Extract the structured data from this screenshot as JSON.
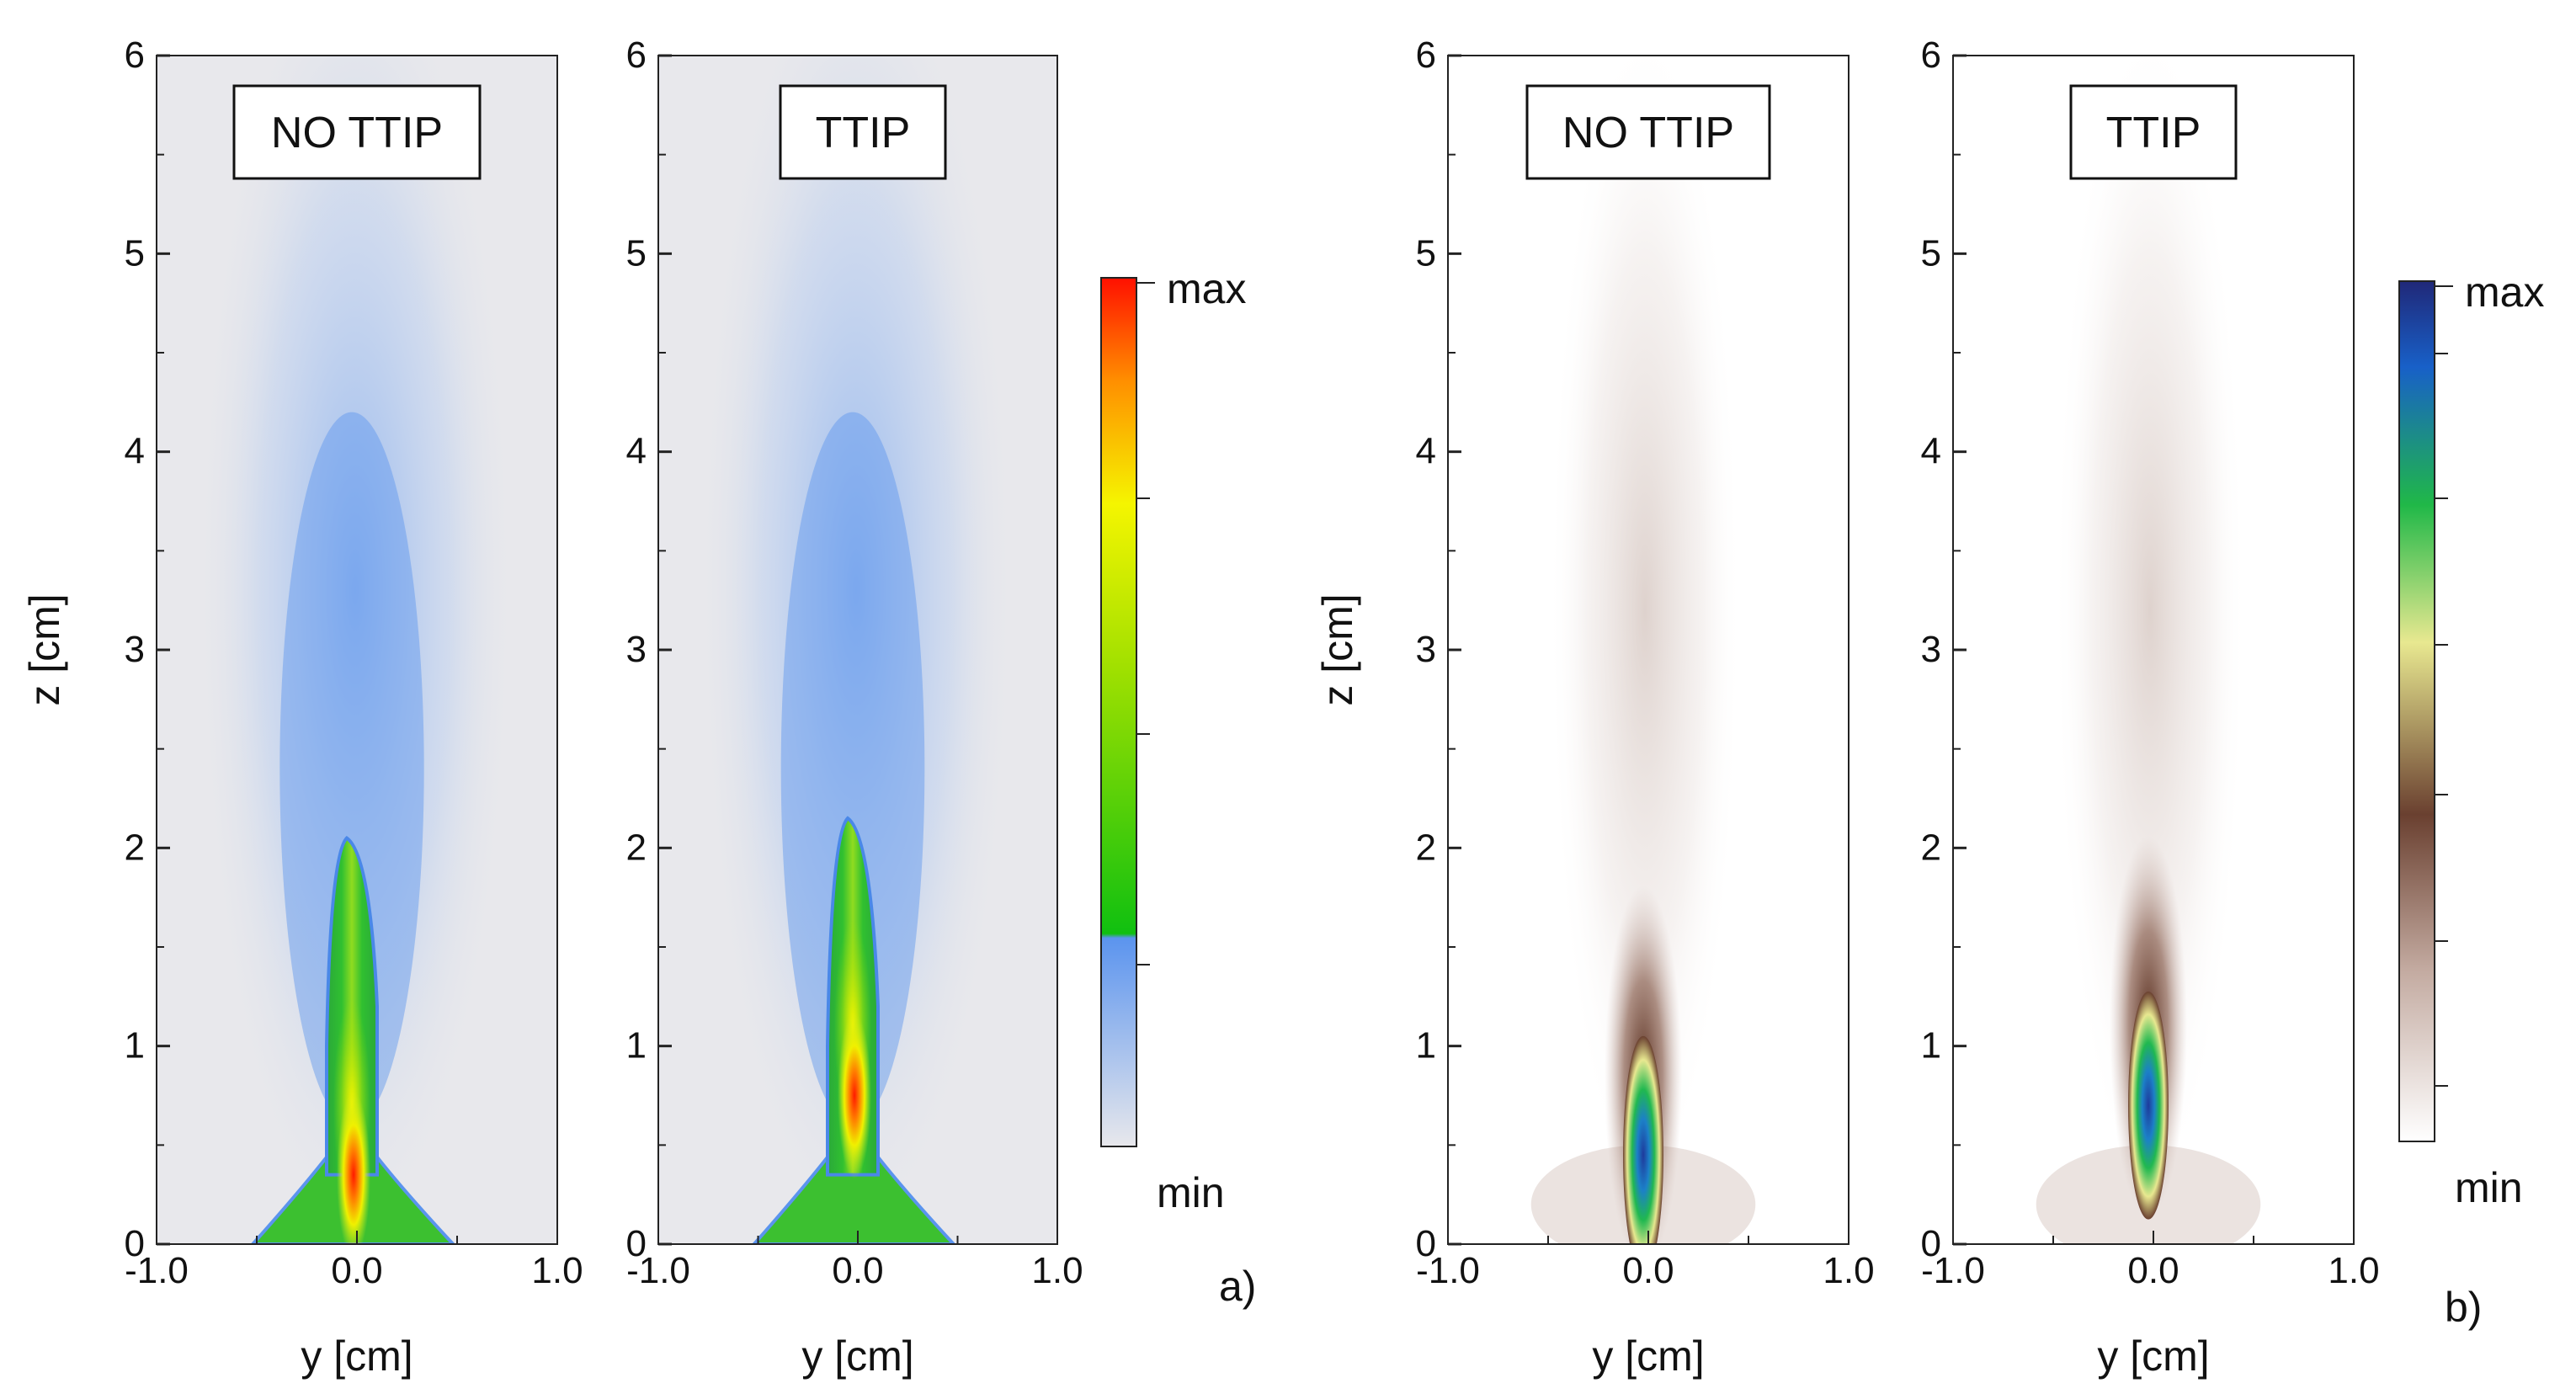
{
  "chart_data": [
    {
      "type": "heatmap",
      "label": "NO TTIP",
      "colormap": "rainbow",
      "panel_group": "a",
      "xlabel": "y [cm]",
      "ylabel": "z [cm]",
      "xlim": [
        -1.0,
        1.0
      ],
      "ylim": [
        0,
        6
      ],
      "xticks": [
        "-1.0",
        "0.0",
        "1.0"
      ],
      "yticks": [
        "0",
        "1",
        "2",
        "3",
        "4",
        "5",
        "6"
      ],
      "core_top_z": 2.05,
      "peak_z": 0.35
    },
    {
      "type": "heatmap",
      "label": "TTIP",
      "colormap": "rainbow",
      "panel_group": "a",
      "xlabel": "y [cm]",
      "ylabel": "",
      "xlim": [
        -1.0,
        1.0
      ],
      "ylim": [
        0,
        6
      ],
      "xticks": [
        "-1.0",
        "0.0",
        "1.0"
      ],
      "yticks": [
        "0",
        "1",
        "2",
        "3",
        "4",
        "5",
        "6"
      ],
      "core_top_z": 2.15,
      "peak_z": 0.75
    },
    {
      "type": "heatmap",
      "label": "NO TTIP",
      "colormap": "earth",
      "panel_group": "b",
      "xlabel": "y [cm]",
      "ylabel": "z [cm]",
      "xlim": [
        -1.0,
        1.0
      ],
      "ylim": [
        0,
        6
      ],
      "xticks": [
        "-1.0",
        "0.0",
        "1.0"
      ],
      "yticks": [
        "0",
        "1",
        "2",
        "3",
        "4",
        "5",
        "6"
      ],
      "core_top_z": 1.25,
      "peak_z": 0.45
    },
    {
      "type": "heatmap",
      "label": "TTIP",
      "colormap": "earth",
      "panel_group": "b",
      "xlabel": "y [cm]",
      "ylabel": "",
      "xlim": [
        -1.0,
        1.0
      ],
      "ylim": [
        0,
        6
      ],
      "xticks": [
        "-1.0",
        "0.0",
        "1.0"
      ],
      "yticks": [
        "0",
        "1",
        "2",
        "3",
        "4",
        "5",
        "6"
      ],
      "core_top_z": 1.2,
      "peak_z": 0.7
    }
  ],
  "colorbars": [
    {
      "colormap": "rainbow",
      "max_label": "max",
      "min_label": "min",
      "stops": [
        "#e8e8ec",
        "#5b94ee",
        "#10c010",
        "#f5f500",
        "#ff9000",
        "#ff1000"
      ]
    },
    {
      "colormap": "earth",
      "max_label": "max",
      "min_label": "min",
      "stops": [
        "#ffffff",
        "#c3aaa0",
        "#6a4030",
        "#e8e890",
        "#20b848",
        "#1860c8",
        "#202878"
      ]
    }
  ],
  "panel_labels": [
    "a)",
    "b)"
  ]
}
